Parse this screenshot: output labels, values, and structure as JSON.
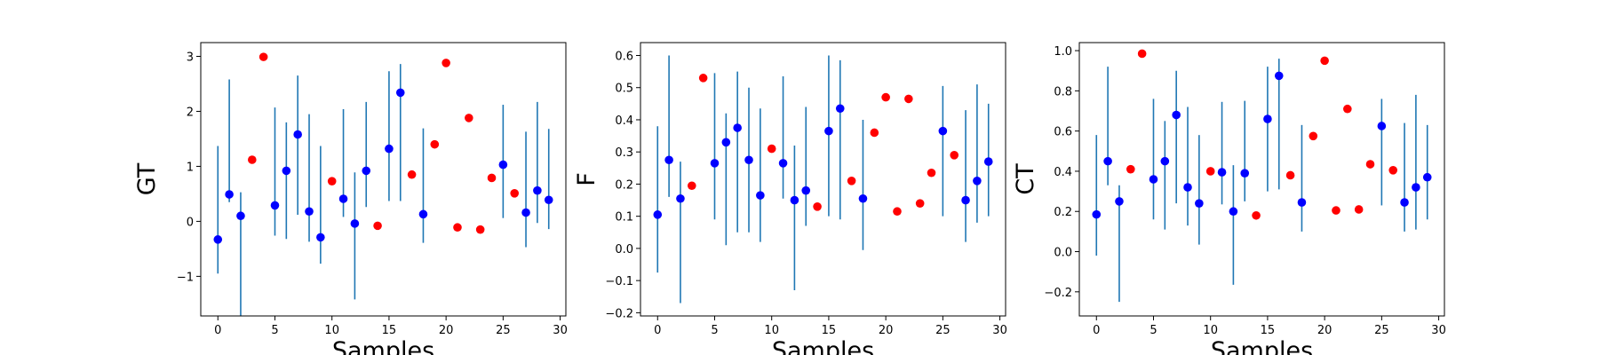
{
  "chart_data": [
    {
      "type": "scatter",
      "ylabel": "GT",
      "xlabel": "Samples",
      "xlim": [
        -1.5,
        30.5
      ],
      "ylim": [
        -1.72,
        3.25
      ],
      "xticks": [
        0,
        5,
        10,
        15,
        20,
        25,
        30
      ],
      "yticks": [
        -1,
        0,
        1,
        2,
        3
      ],
      "grid": false,
      "series": [
        {
          "marker": "error-bar",
          "color": "#0000ff",
          "errorbar_color": "#1f77b4",
          "points": [
            {
              "x": 0,
              "y": -0.33,
              "low": -0.95,
              "high": 1.37
            },
            {
              "x": 1,
              "y": 0.49,
              "low": 0.35,
              "high": 2.58
            },
            {
              "x": 2,
              "y": 0.1,
              "low": -1.72,
              "high": 0.53
            },
            {
              "x": 5,
              "y": 0.29,
              "low": -0.26,
              "high": 2.07
            },
            {
              "x": 6,
              "y": 0.92,
              "low": -0.32,
              "high": 1.8
            },
            {
              "x": 7,
              "y": 1.58,
              "low": 0.12,
              "high": 2.65
            },
            {
              "x": 8,
              "y": 0.18,
              "low": -0.37,
              "high": 1.95
            },
            {
              "x": 9,
              "y": -0.29,
              "low": -0.77,
              "high": 1.37
            },
            {
              "x": 11,
              "y": 0.41,
              "low": 0.08,
              "high": 2.04
            },
            {
              "x": 12,
              "y": -0.04,
              "low": -1.42,
              "high": 0.89
            },
            {
              "x": 13,
              "y": 0.92,
              "low": 0.26,
              "high": 2.17
            },
            {
              "x": 15,
              "y": 1.32,
              "low": 0.37,
              "high": 2.73
            },
            {
              "x": 16,
              "y": 2.34,
              "low": 0.37,
              "high": 2.86
            },
            {
              "x": 18,
              "y": 0.13,
              "low": -0.39,
              "high": 1.69
            },
            {
              "x": 25,
              "y": 1.03,
              "low": 0.06,
              "high": 2.12
            },
            {
              "x": 27,
              "y": 0.16,
              "low": -0.47,
              "high": 1.63
            },
            {
              "x": 28,
              "y": 0.56,
              "low": -0.03,
              "high": 2.17
            },
            {
              "x": 29,
              "y": 0.39,
              "low": -0.14,
              "high": 1.68
            }
          ]
        },
        {
          "marker": "dot",
          "color": "#ff0000",
          "points": [
            {
              "x": 3,
              "y": 1.12
            },
            {
              "x": 4,
              "y": 2.99
            },
            {
              "x": 10,
              "y": 0.73
            },
            {
              "x": 14,
              "y": -0.08
            },
            {
              "x": 17,
              "y": 0.85
            },
            {
              "x": 19,
              "y": 1.4
            },
            {
              "x": 20,
              "y": 2.88
            },
            {
              "x": 21,
              "y": -0.11
            },
            {
              "x": 22,
              "y": 1.88
            },
            {
              "x": 23,
              "y": -0.15
            },
            {
              "x": 24,
              "y": 0.79
            },
            {
              "x": 26,
              "y": 0.51
            }
          ]
        }
      ]
    },
    {
      "type": "scatter",
      "ylabel": "F",
      "xlabel": "Samples",
      "xlim": [
        -1.5,
        30.5
      ],
      "ylim": [
        -0.21,
        0.64
      ],
      "xticks": [
        0,
        5,
        10,
        15,
        20,
        25,
        30
      ],
      "yticks": [
        -0.2,
        -0.1,
        0.0,
        0.1,
        0.2,
        0.3,
        0.4,
        0.5,
        0.6
      ],
      "ytick_labels": [
        "−0.2",
        "−0.1",
        "0.0",
        "0.1",
        "0.2",
        "0.3",
        "0.4",
        "0.5",
        "0.6"
      ],
      "grid": false,
      "series": [
        {
          "marker": "error-bar",
          "color": "#0000ff",
          "errorbar_color": "#1f77b4",
          "points": [
            {
              "x": 0,
              "y": 0.105,
              "low": -0.075,
              "high": 0.38
            },
            {
              "x": 1,
              "y": 0.275,
              "low": 0.16,
              "high": 0.6
            },
            {
              "x": 2,
              "y": 0.155,
              "low": -0.17,
              "high": 0.27
            },
            {
              "x": 5,
              "y": 0.265,
              "low": 0.09,
              "high": 0.545
            },
            {
              "x": 6,
              "y": 0.33,
              "low": 0.01,
              "high": 0.42
            },
            {
              "x": 7,
              "y": 0.375,
              "low": 0.05,
              "high": 0.55
            },
            {
              "x": 8,
              "y": 0.275,
              "low": 0.05,
              "high": 0.5
            },
            {
              "x": 9,
              "y": 0.165,
              "low": 0.02,
              "high": 0.435
            },
            {
              "x": 11,
              "y": 0.265,
              "low": 0.155,
              "high": 0.535
            },
            {
              "x": 12,
              "y": 0.15,
              "low": -0.13,
              "high": 0.32
            },
            {
              "x": 13,
              "y": 0.18,
              "low": 0.07,
              "high": 0.44
            },
            {
              "x": 15,
              "y": 0.365,
              "low": 0.1,
              "high": 0.6
            },
            {
              "x": 16,
              "y": 0.435,
              "low": 0.09,
              "high": 0.585
            },
            {
              "x": 18,
              "y": 0.155,
              "low": -0.005,
              "high": 0.4
            },
            {
              "x": 25,
              "y": 0.365,
              "low": 0.1,
              "high": 0.505
            },
            {
              "x": 27,
              "y": 0.15,
              "low": 0.02,
              "high": 0.43
            },
            {
              "x": 28,
              "y": 0.21,
              "low": 0.08,
              "high": 0.51
            },
            {
              "x": 29,
              "y": 0.27,
              "low": 0.1,
              "high": 0.45
            }
          ]
        },
        {
          "marker": "dot",
          "color": "#ff0000",
          "points": [
            {
              "x": 3,
              "y": 0.195
            },
            {
              "x": 4,
              "y": 0.53
            },
            {
              "x": 10,
              "y": 0.31
            },
            {
              "x": 14,
              "y": 0.13
            },
            {
              "x": 17,
              "y": 0.21
            },
            {
              "x": 19,
              "y": 0.36
            },
            {
              "x": 20,
              "y": 0.47
            },
            {
              "x": 21,
              "y": 0.115
            },
            {
              "x": 22,
              "y": 0.465
            },
            {
              "x": 23,
              "y": 0.14
            },
            {
              "x": 24,
              "y": 0.235
            },
            {
              "x": 26,
              "y": 0.29
            }
          ]
        }
      ]
    },
    {
      "type": "scatter",
      "ylabel": "CT",
      "xlabel": "Samples",
      "xlim": [
        -1.5,
        30.5
      ],
      "ylim": [
        -0.32,
        1.04
      ],
      "xticks": [
        0,
        5,
        10,
        15,
        20,
        25,
        30
      ],
      "yticks": [
        -0.2,
        0.0,
        0.2,
        0.4,
        0.6,
        0.8,
        1.0
      ],
      "ytick_labels": [
        "−0.2",
        "0.0",
        "0.2",
        "0.4",
        "0.6",
        "0.8",
        "1.0"
      ],
      "grid": false,
      "series": [
        {
          "marker": "error-bar",
          "color": "#0000ff",
          "errorbar_color": "#1f77b4",
          "points": [
            {
              "x": 0,
              "y": 0.185,
              "low": -0.02,
              "high": 0.58
            },
            {
              "x": 1,
              "y": 0.45,
              "low": 0.33,
              "high": 0.92
            },
            {
              "x": 2,
              "y": 0.25,
              "low": -0.25,
              "high": 0.33
            },
            {
              "x": 5,
              "y": 0.36,
              "low": 0.16,
              "high": 0.76
            },
            {
              "x": 6,
              "y": 0.45,
              "low": 0.11,
              "high": 0.65
            },
            {
              "x": 7,
              "y": 0.68,
              "low": 0.24,
              "high": 0.9
            },
            {
              "x": 8,
              "y": 0.32,
              "low": 0.13,
              "high": 0.72
            },
            {
              "x": 9,
              "y": 0.24,
              "low": 0.035,
              "high": 0.58
            },
            {
              "x": 11,
              "y": 0.395,
              "low": 0.235,
              "high": 0.745
            },
            {
              "x": 12,
              "y": 0.2,
              "low": -0.165,
              "high": 0.43
            },
            {
              "x": 13,
              "y": 0.39,
              "low": 0.25,
              "high": 0.75
            },
            {
              "x": 15,
              "y": 0.66,
              "low": 0.3,
              "high": 0.92
            },
            {
              "x": 16,
              "y": 0.875,
              "low": 0.31,
              "high": 0.96
            },
            {
              "x": 18,
              "y": 0.245,
              "low": 0.1,
              "high": 0.63
            },
            {
              "x": 25,
              "y": 0.625,
              "low": 0.23,
              "high": 0.76
            },
            {
              "x": 27,
              "y": 0.245,
              "low": 0.1,
              "high": 0.64
            },
            {
              "x": 28,
              "y": 0.32,
              "low": 0.11,
              "high": 0.78
            },
            {
              "x": 29,
              "y": 0.37,
              "low": 0.16,
              "high": 0.63
            }
          ]
        },
        {
          "marker": "dot",
          "color": "#ff0000",
          "points": [
            {
              "x": 3,
              "y": 0.41
            },
            {
              "x": 4,
              "y": 0.985
            },
            {
              "x": 10,
              "y": 0.4
            },
            {
              "x": 14,
              "y": 0.18
            },
            {
              "x": 17,
              "y": 0.38
            },
            {
              "x": 19,
              "y": 0.575
            },
            {
              "x": 20,
              "y": 0.95
            },
            {
              "x": 21,
              "y": 0.205
            },
            {
              "x": 22,
              "y": 0.71
            },
            {
              "x": 23,
              "y": 0.21
            },
            {
              "x": 24,
              "y": 0.435
            },
            {
              "x": 26,
              "y": 0.405
            }
          ]
        }
      ]
    }
  ]
}
